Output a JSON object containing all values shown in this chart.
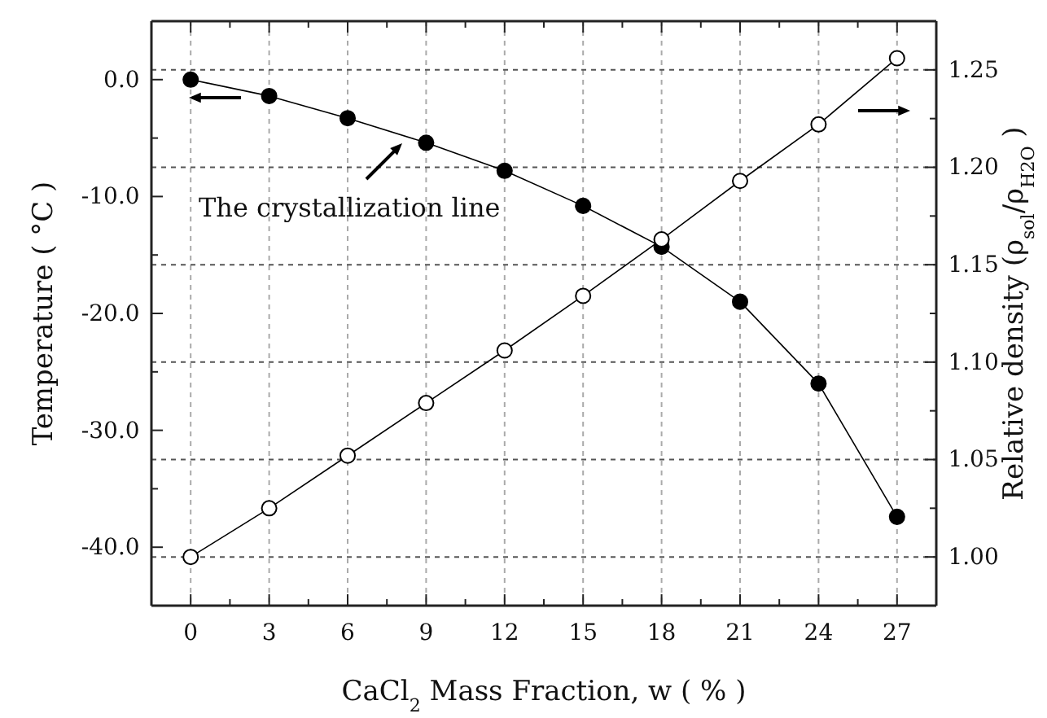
{
  "chart_data": {
    "type": "line",
    "xlabel": "CaCl$_{2}$ Mass Fraction, w ( % )",
    "ylabel": "Temperature ( °C )",
    "y2label": "Relative density (ρ$_{sol}$/ρ$_{H2O}$ )",
    "annotations": [
      "The crystallization line"
    ],
    "x": [
      0,
      3,
      6,
      9,
      12,
      15,
      18,
      21,
      24,
      27
    ],
    "series": [
      {
        "color": "#000000",
        "values": [
          0,
          -1.4,
          -3.3,
          -5.4,
          -7.8,
          -10.8,
          -14.3,
          -19.0,
          -26.0,
          -37.4
        ]
      },
      {
        "color": "#000000",
        "axis": "y2",
        "values": [
          1.0,
          1.025,
          1.052,
          1.079,
          1.106,
          1.134,
          1.163,
          1.193,
          1.222,
          1.256
        ]
      }
    ],
    "xlim": [
      -1.5,
      28.5
    ],
    "xticks": [
      0,
      {
        "value": 1.5,
        "label": null
      },
      3,
      {
        "value": 4.5,
        "label": null
      },
      6,
      {
        "value": 7.5,
        "label": null
      },
      9,
      {
        "value": 10.5,
        "label": null
      },
      12,
      {
        "value": 13.5,
        "label": null
      },
      15,
      {
        "value": 16.5,
        "label": null
      },
      18,
      {
        "value": 19.5,
        "label": null
      },
      21,
      {
        "value": 22.5,
        "label": null
      },
      24,
      {
        "value": 25.5,
        "label": null
      },
      27
    ],
    "ylim": [
      -45,
      5
    ],
    "yticks": [
      {
        "value": -40,
        "label": "-40.0"
      },
      {
        "value": -35,
        "label": null
      },
      {
        "value": -30,
        "label": "-30.0"
      },
      {
        "value": -25,
        "label": null
      },
      {
        "value": -20,
        "label": "-20.0"
      },
      {
        "value": -15,
        "label": null
      },
      {
        "value": -10,
        "label": "-10.0"
      },
      {
        "value": -5,
        "label": null
      },
      {
        "value": 0,
        "label": "0.0"
      }
    ],
    "y2lim": [
      0.975,
      1.275
    ],
    "y2ticks": [
      {
        "value": 1.0,
        "label": "1.00"
      },
      {
        "value": 1.025,
        "label": null
      },
      {
        "value": 1.05,
        "label": "1.05"
      },
      {
        "value": 1.075,
        "label": null
      },
      {
        "value": 1.1,
        "label": "1.10"
      },
      {
        "value": 1.125,
        "label": null
      },
      {
        "value": 1.15,
        "label": "1.15"
      },
      {
        "value": 1.175,
        "label": null
      },
      {
        "value": 1.2,
        "label": "1.20"
      },
      {
        "value": 1.225,
        "label": null
      },
      {
        "value": 1.25,
        "label": "1.25"
      }
    ],
    "grid": true,
    "marker": "circle"
  }
}
